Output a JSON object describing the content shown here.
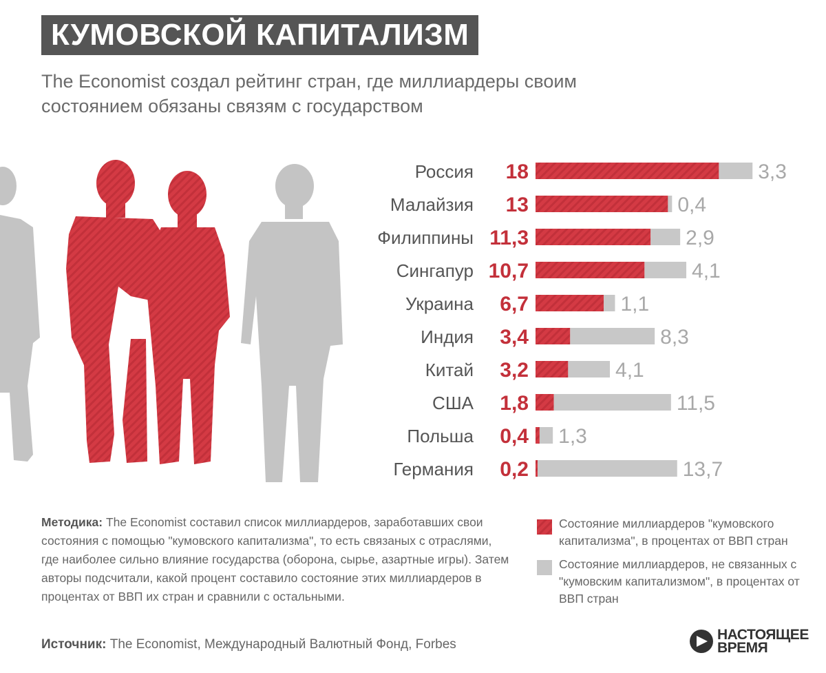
{
  "title": "КУМОВСКОЙ КАПИТАЛИЗМ",
  "subtitle": "The Economist создал рейтинг стран, где миллиардеры своим состоянием обязаны связям с государством",
  "colors": {
    "red": "#d43a44",
    "red_dark": "#b92c36",
    "gray": "#c8c8c8",
    "gray_text": "#a8a8a8",
    "title_bg": "#555555"
  },
  "chart_data": {
    "type": "bar",
    "orientation": "horizontal",
    "stacked": true,
    "categories": [
      "Россия",
      "Малайзия",
      "Филиппины",
      "Сингапур",
      "Украина",
      "Индия",
      "Китай",
      "США",
      "Польша",
      "Германия"
    ],
    "series": [
      {
        "name": "Состояние миллиардеров \"кумовского капитализма\", в процентах от ВВП стран",
        "values": [
          18,
          13,
          11.3,
          10.7,
          6.7,
          3.4,
          3.2,
          1.8,
          0.4,
          0.2
        ],
        "labels": [
          "18",
          "13",
          "11,3",
          "10,7",
          "6,7",
          "3,4",
          "3,2",
          "1,8",
          "0,4",
          "0,2"
        ]
      },
      {
        "name": "Состояние миллиардеров, не связанных с \"кумовским капитализмом\", в процентах от ВВП стран",
        "values": [
          3.3,
          0.4,
          2.9,
          4.1,
          1.1,
          8.3,
          4.1,
          11.5,
          1.3,
          13.7
        ],
        "labels": [
          "3,3",
          "0,4",
          "2,9",
          "4,1",
          "1,1",
          "8,3",
          "4,1",
          "11,5",
          "1,3",
          "13,7"
        ]
      }
    ]
  },
  "method_label": "Методика:",
  "method_text": "The Economist составил список миллиардеров, заработавших свои состояния с помощью \"кумовского капитализма\", то есть связаных с отраслями, где наиболее сильно влияние государства (оборона, сырье, азартные игры). Затем авторы подсчитали, какой процент составило состояние этих миллиардеров в процентах от ВВП их стран и сравнили с остальными.",
  "legend": [
    {
      "text": "Состояние миллиардеров \"кумовского капитализма\", в процентах от ВВП стран"
    },
    {
      "text": "Состояние миллиардеров, не связанных с \"кумовским капитализмом\", в процентах от ВВП стран"
    }
  ],
  "source_label": "Источник:",
  "source_text": "The Economist, Международный Валютный Фонд, Forbes",
  "logo": {
    "line1": "НАСТОЯЩЕЕ",
    "line2": "ВРЕМЯ"
  }
}
